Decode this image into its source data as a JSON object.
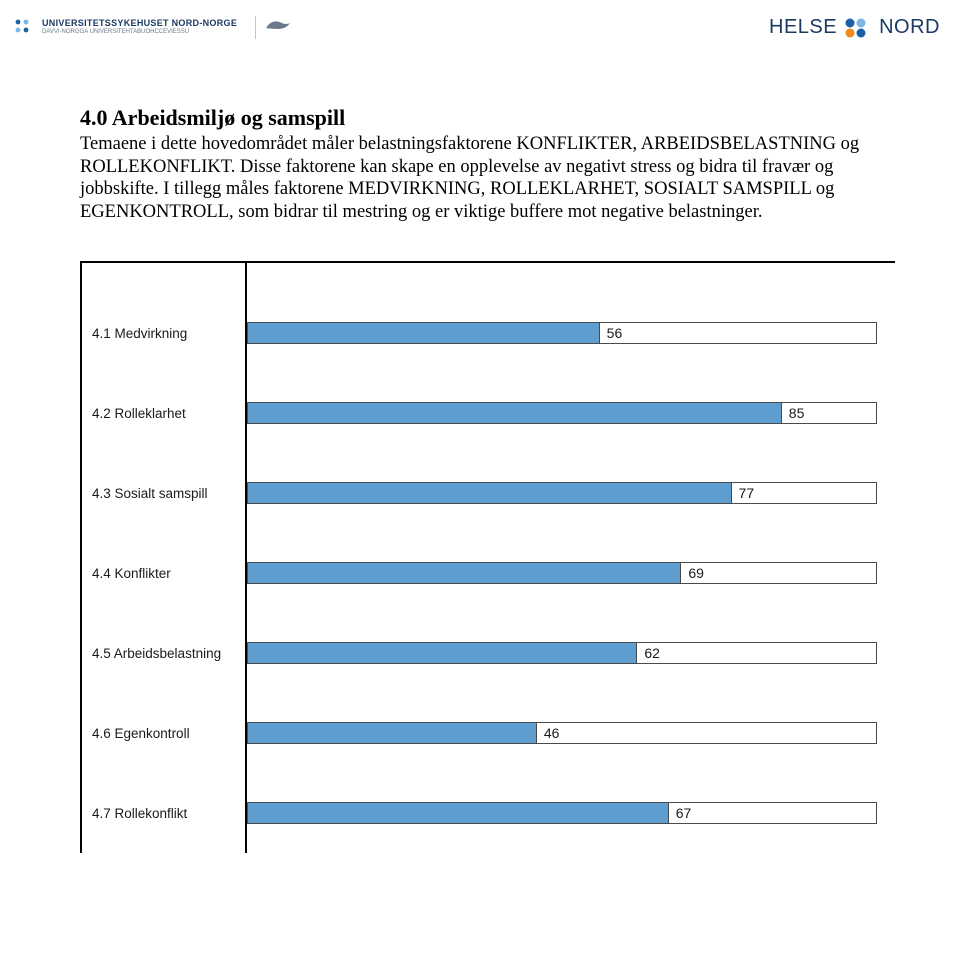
{
  "header": {
    "left_logo": {
      "main": "UNIVERSITETSSYKEHUSET NORD-NORGE",
      "sub": "DAVVI-NORGGA UNIVERSITEHTABUOHCCEVIESSU",
      "icon_color_1": "#1b5fa6",
      "icon_color_2": "#7db6e6"
    },
    "right_logo": {
      "text_left": "HELSE",
      "text_right": "NORD",
      "dot_colors": [
        "#1b5fa6",
        "#7db6e6",
        "#f08a1d",
        "#1b5fa6"
      ],
      "text_color": "#1b3a66"
    }
  },
  "section": {
    "title": "4.0 Arbeidsmiljø og samspill",
    "body": "Temaene i dette hovedområdet måler belastningsfaktorene KONFLIKTER, ARBEIDSBELASTNING og ROLLEKONFLIKT. Disse faktorene kan skape en opplevelse av negativt stress og bidra til fravær og jobbskifte. I tillegg måles faktorene MEDVIRKNING, ROLLEKLARHET, SOSIALT SAMSPILL og EGENKONTROLL, som bidrar til mestring og er viktige buffere mot negative belastninger."
  },
  "chart": {
    "type": "bar",
    "orientation": "horizontal",
    "x_max": 100,
    "bar_color": "#5d9dcf",
    "bar_border_color": "#4a4a4a",
    "track_bg": "#ffffff",
    "axis_color": "#000000",
    "label_fontsize": 13.5,
    "value_fontsize": 14,
    "bars": [
      {
        "label": "4.1 Medvirkning",
        "value": 56
      },
      {
        "label": "4.2 Rolleklarhet",
        "value": 85
      },
      {
        "label": "4.3 Sosialt samspill",
        "value": 77
      },
      {
        "label": "4.4 Konflikter",
        "value": 69
      },
      {
        "label": "4.5 Arbeidsbelastning",
        "value": 62
      },
      {
        "label": "4.6 Egenkontroll",
        "value": 46
      },
      {
        "label": "4.7 Rollekonflikt",
        "value": 67
      }
    ]
  }
}
